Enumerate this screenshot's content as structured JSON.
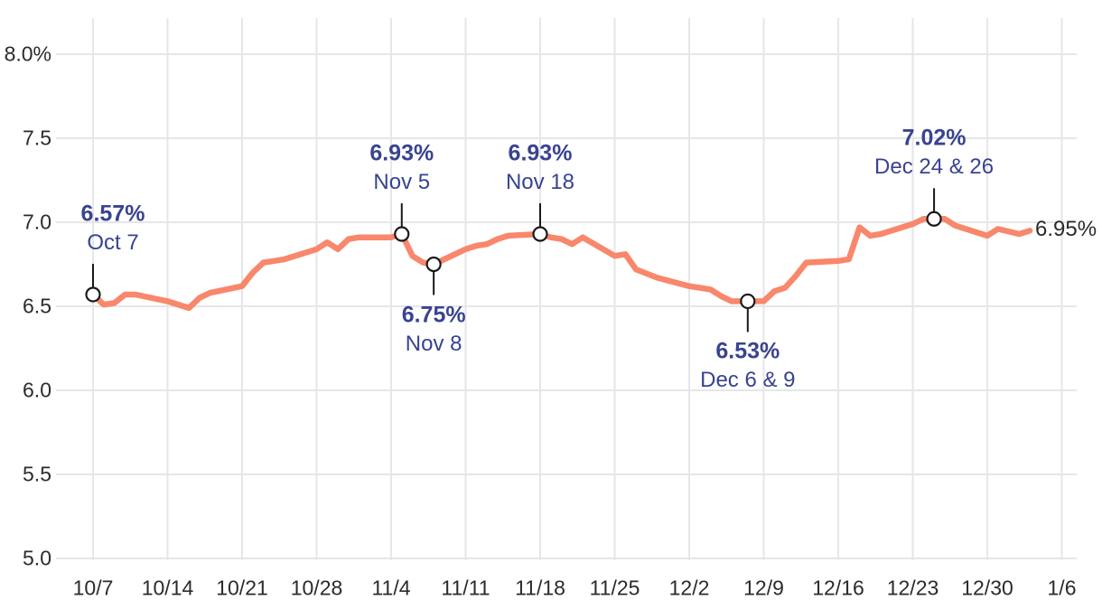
{
  "chart": {
    "colors": {
      "line": "#F8876C",
      "grid": "#E6E6E9",
      "axis_text": "#2B2B2B",
      "annotation_text": "#394390",
      "marker_fill": "#FFFFFF",
      "marker_stroke": "#1A1A1A",
      "callout": "#1A1A1A",
      "background": "#FFFFFF"
    }
  },
  "chart_data": {
    "type": "line",
    "title": "",
    "xlabel": "",
    "ylabel": "",
    "y_unit": "percent",
    "ylim": [
      5.0,
      8.0
    ],
    "grid": true,
    "legend": "none",
    "y_ticks": [
      {
        "label": "8.0%",
        "value": 8.0
      },
      {
        "label": "7.5",
        "value": 7.5
      },
      {
        "label": "7.0",
        "value": 7.0
      },
      {
        "label": "6.5",
        "value": 6.5
      },
      {
        "label": "6.0",
        "value": 6.0
      },
      {
        "label": "5.5",
        "value": 5.5
      },
      {
        "label": "5.0",
        "value": 5.0
      }
    ],
    "x_ticks": [
      {
        "label": "10/7"
      },
      {
        "label": "10/14"
      },
      {
        "label": "10/21"
      },
      {
        "label": "10/28"
      },
      {
        "label": "11/4"
      },
      {
        "label": "11/11"
      },
      {
        "label": "11/18"
      },
      {
        "label": "11/25"
      },
      {
        "label": "12/2"
      },
      {
        "label": "12/9"
      },
      {
        "label": "12/16"
      },
      {
        "label": "12/23"
      },
      {
        "label": "12/30"
      },
      {
        "label": "1/6"
      }
    ],
    "series": [
      {
        "name": "rate",
        "points": [
          {
            "date": "10/7",
            "value": 6.57
          },
          {
            "date": "10/8",
            "value": 6.51
          },
          {
            "date": "10/9",
            "value": 6.52
          },
          {
            "date": "10/10",
            "value": 6.57
          },
          {
            "date": "10/11",
            "value": 6.57
          },
          {
            "date": "10/14",
            "value": 6.53
          },
          {
            "date": "10/15",
            "value": 6.51
          },
          {
            "date": "10/16",
            "value": 6.49
          },
          {
            "date": "10/17",
            "value": 6.55
          },
          {
            "date": "10/18",
            "value": 6.58
          },
          {
            "date": "10/21",
            "value": 6.62
          },
          {
            "date": "10/22",
            "value": 6.7
          },
          {
            "date": "10/23",
            "value": 6.76
          },
          {
            "date": "10/24",
            "value": 6.77
          },
          {
            "date": "10/25",
            "value": 6.78
          },
          {
            "date": "10/28",
            "value": 6.84
          },
          {
            "date": "10/29",
            "value": 6.88
          },
          {
            "date": "10/30",
            "value": 6.84
          },
          {
            "date": "10/31",
            "value": 6.9
          },
          {
            "date": "11/1",
            "value": 6.91
          },
          {
            "date": "11/4",
            "value": 6.91
          },
          {
            "date": "11/5",
            "value": 6.93
          },
          {
            "date": "11/6",
            "value": 6.8
          },
          {
            "date": "11/7",
            "value": 6.76
          },
          {
            "date": "11/8",
            "value": 6.75
          },
          {
            "date": "11/11",
            "value": 6.84
          },
          {
            "date": "11/12",
            "value": 6.86
          },
          {
            "date": "11/13",
            "value": 6.87
          },
          {
            "date": "11/14",
            "value": 6.9
          },
          {
            "date": "11/15",
            "value": 6.92
          },
          {
            "date": "11/18",
            "value": 6.93
          },
          {
            "date": "11/19",
            "value": 6.91
          },
          {
            "date": "11/20",
            "value": 6.9
          },
          {
            "date": "11/21",
            "value": 6.87
          },
          {
            "date": "11/22",
            "value": 6.91
          },
          {
            "date": "11/25",
            "value": 6.8
          },
          {
            "date": "11/26",
            "value": 6.81
          },
          {
            "date": "11/27",
            "value": 6.72
          },
          {
            "date": "11/29",
            "value": 6.67
          },
          {
            "date": "12/2",
            "value": 6.62
          },
          {
            "date": "12/3",
            "value": 6.61
          },
          {
            "date": "12/4",
            "value": 6.6
          },
          {
            "date": "12/5",
            "value": 6.56
          },
          {
            "date": "12/6",
            "value": 6.53
          },
          {
            "date": "12/9",
            "value": 6.53
          },
          {
            "date": "12/10",
            "value": 6.59
          },
          {
            "date": "12/11",
            "value": 6.61
          },
          {
            "date": "12/12",
            "value": 6.68
          },
          {
            "date": "12/13",
            "value": 6.76
          },
          {
            "date": "12/16",
            "value": 6.77
          },
          {
            "date": "12/17",
            "value": 6.78
          },
          {
            "date": "12/18",
            "value": 6.97
          },
          {
            "date": "12/19",
            "value": 6.92
          },
          {
            "date": "12/20",
            "value": 6.93
          },
          {
            "date": "12/23",
            "value": 6.99
          },
          {
            "date": "12/24",
            "value": 7.02
          },
          {
            "date": "12/26",
            "value": 7.02
          },
          {
            "date": "12/27",
            "value": 6.98
          },
          {
            "date": "12/30",
            "value": 6.92
          },
          {
            "date": "12/31",
            "value": 6.96
          },
          {
            "date": "1/2",
            "value": 6.93
          },
          {
            "date": "1/3",
            "value": 6.95
          }
        ]
      }
    ],
    "annotations": [
      {
        "value_label": "6.57%",
        "date_label": "Oct 7",
        "dates": [
          "10/7"
        ],
        "value": 6.57,
        "position": "above",
        "dx": 22
      },
      {
        "value_label": "6.93%",
        "date_label": "Nov 5",
        "dates": [
          "11/5"
        ],
        "value": 6.93,
        "position": "above",
        "dx": 0
      },
      {
        "value_label": "6.75%",
        "date_label": "Nov 8",
        "dates": [
          "11/8"
        ],
        "value": 6.75,
        "position": "below",
        "dx": 0
      },
      {
        "value_label": "6.93%",
        "date_label": "Nov 18",
        "dates": [
          "11/18"
        ],
        "value": 6.93,
        "position": "above",
        "dx": 0
      },
      {
        "value_label": "6.53%",
        "date_label": "Dec 6 & 9",
        "dates": [
          "12/6",
          "12/9"
        ],
        "value": 6.53,
        "position": "below",
        "dx": 0
      },
      {
        "value_label": "7.02%",
        "date_label": "Dec 24 & 26",
        "dates": [
          "12/24",
          "12/26"
        ],
        "value": 7.02,
        "position": "above",
        "dx": 0
      }
    ],
    "end_label": "6.95%"
  }
}
